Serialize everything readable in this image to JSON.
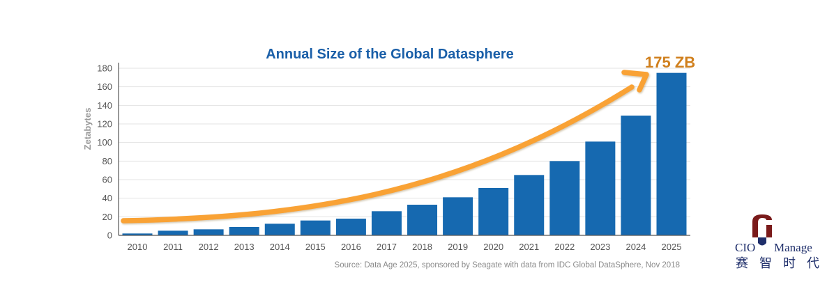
{
  "chart_data": {
    "type": "bar",
    "title": "Annual Size of the Global Datasphere",
    "xlabel": "",
    "ylabel": "Zetabytes",
    "categories": [
      "2010",
      "2011",
      "2012",
      "2013",
      "2014",
      "2015",
      "2016",
      "2017",
      "2018",
      "2019",
      "2020",
      "2021",
      "2022",
      "2023",
      "2024",
      "2025"
    ],
    "values": [
      2,
      5,
      6.5,
      9,
      12.5,
      16,
      18,
      26,
      33,
      41,
      51,
      65,
      80,
      101,
      129,
      175
    ],
    "ylim": [
      0,
      180
    ],
    "yticks": [
      0,
      20,
      40,
      60,
      80,
      100,
      120,
      140,
      160,
      180
    ],
    "grid": true,
    "annotation": "175 ZB",
    "source": "Source: Data Age 2025, sponsored by Seagate with data from IDC Global DataSphere, Nov 2018"
  },
  "colors": {
    "bar": "#1669b0",
    "title": "#1a5fa8",
    "axis_title": "#9b9b9b",
    "tick": "#555555",
    "grid": "#e3e3e3",
    "axis": "#555555",
    "trend_arrow": "#f9a236",
    "callout": "#d07f1c",
    "source": "#8a8a8a",
    "logo_mark": "#7a1b1b",
    "logo_text": "#1f2f6b"
  },
  "logo": {
    "left_text": "CIO",
    "right_text": "Manage",
    "cjk_text": "赛智时代"
  }
}
